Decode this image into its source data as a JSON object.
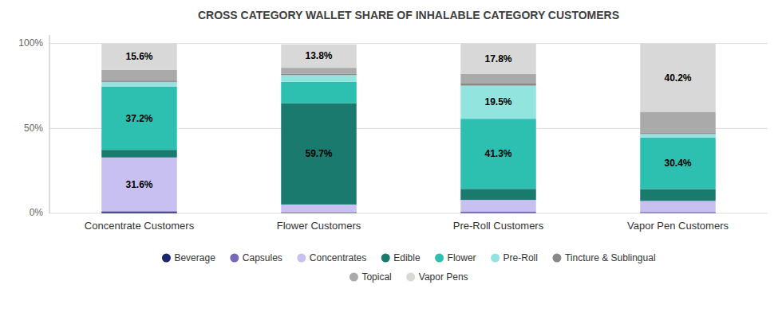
{
  "chart_data": {
    "type": "bar",
    "stacked": true,
    "title": "CROSS CATEGORY WALLET SHARE OF INHALABLE CATEGORY CUSTOMERS",
    "categories": [
      "Concentrate Customers",
      "Flower Customers",
      "Pre-Roll Customers",
      "Vapor Pen Customers"
    ],
    "series": [
      {
        "name": "Beverage",
        "color": "#1c2670",
        "values": [
          0.5,
          0.2,
          0.3,
          0.2
        ]
      },
      {
        "name": "Capsules",
        "color": "#7868b8",
        "values": [
          0.8,
          0.5,
          0.6,
          0.6
        ]
      },
      {
        "name": "Concentrates",
        "color": "#c8c0f0",
        "values": [
          31.6,
          4.5,
          7.0,
          6.5
        ],
        "value_labels": [
          "31.6%",
          null,
          null,
          null
        ]
      },
      {
        "name": "Edible",
        "color": "#1a7a6e",
        "values": [
          4.5,
          59.7,
          6.5,
          7.0
        ],
        "value_labels": [
          null,
          "59.7%",
          null,
          null
        ]
      },
      {
        "name": "Flower",
        "color": "#2dc0b0",
        "values": [
          37.2,
          12.5,
          41.3,
          30.4
        ],
        "value_labels": [
          "37.2%",
          null,
          "41.3%",
          "30.4%"
        ]
      },
      {
        "name": "Pre-Roll",
        "color": "#92e5de",
        "values": [
          2.8,
          4.0,
          19.5,
          2.0
        ],
        "value_labels": [
          null,
          null,
          "19.5%",
          null
        ]
      },
      {
        "name": "Tincture & Sublingual",
        "color": "#888888",
        "values": [
          0.8,
          0.7,
          1.2,
          0.6
        ]
      },
      {
        "name": "Topical",
        "color": "#aaaaaa",
        "values": [
          6.2,
          3.6,
          5.8,
          12.5
        ]
      },
      {
        "name": "Vapor Pens",
        "color": "#d8d8d8",
        "values": [
          15.6,
          13.8,
          17.8,
          40.2
        ],
        "value_labels": [
          "15.6%",
          "13.8%",
          "17.8%",
          "40.2%"
        ]
      }
    ],
    "ylim": [
      0,
      105
    ],
    "yticks": [
      {
        "value": 0,
        "label": "0%"
      },
      {
        "value": 50,
        "label": "50%"
      },
      {
        "value": 100,
        "label": "100%"
      }
    ],
    "grid": true,
    "legend": "bottom",
    "data_labels": true
  }
}
